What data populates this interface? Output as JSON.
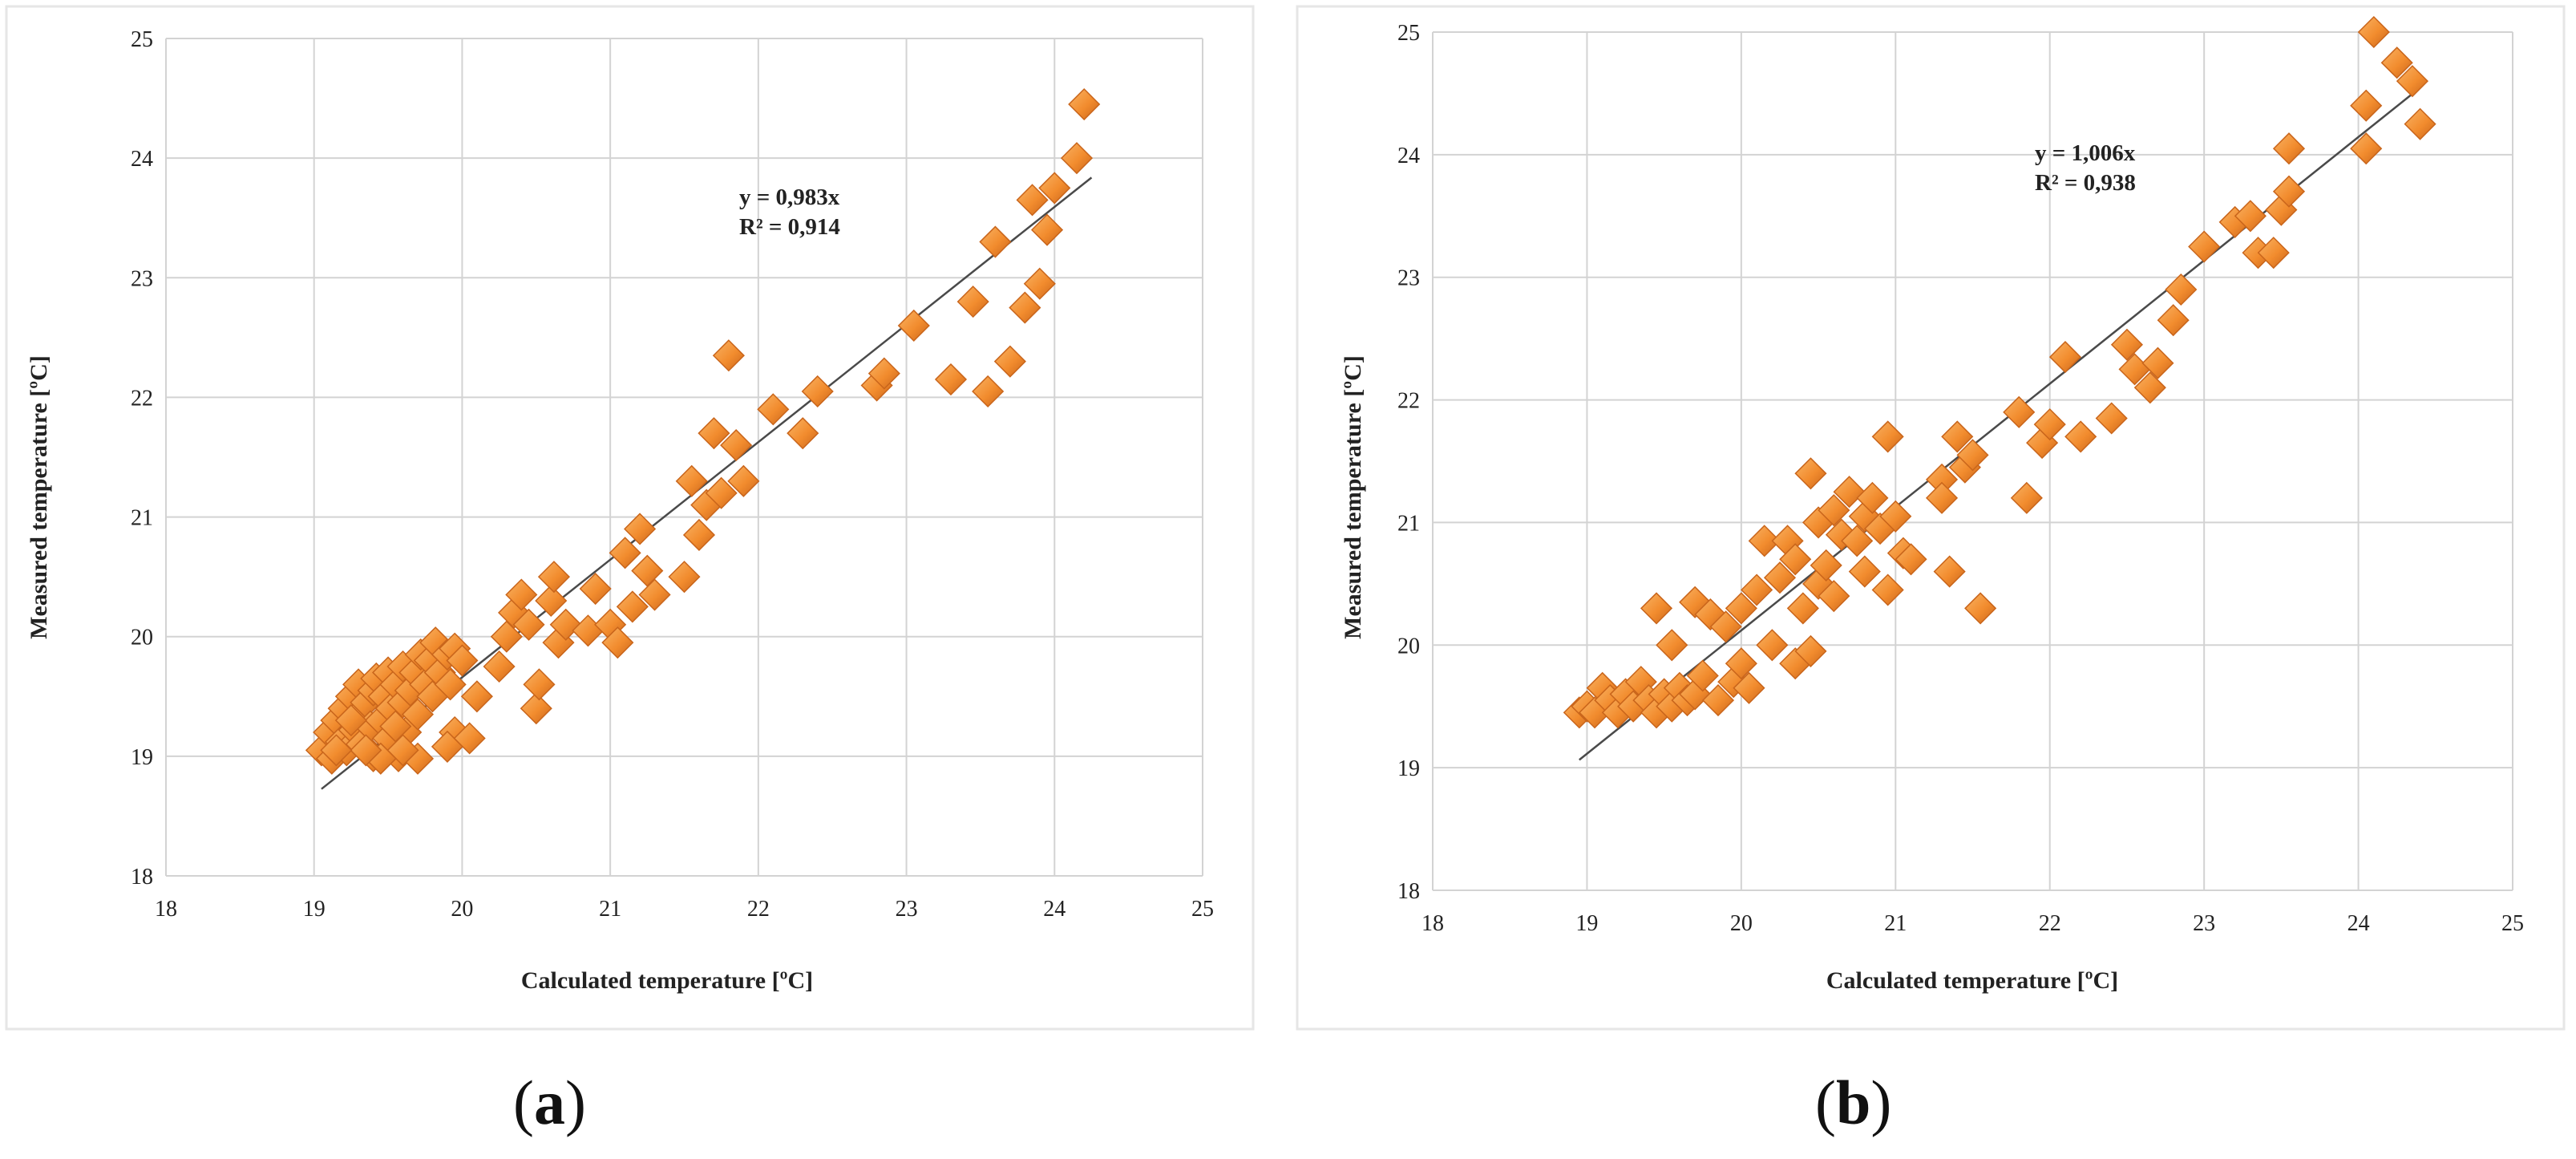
{
  "colors": {
    "marker_fill": "#f28c2e",
    "marker_highlight": "#f9b465",
    "marker_shadow": "#c9651b",
    "grid": "#d3d3d3",
    "trend": "#4a4a4a",
    "text": "#222222"
  },
  "chart_data": [
    {
      "id": "a",
      "type": "scatter",
      "panel_label": "a",
      "xlabel": "Calculated temperature [ºC]",
      "ylabel": "Measured temperature [ºC]",
      "xlim": [
        18,
        25
      ],
      "ylim": [
        18,
        25
      ],
      "xticks": [
        18,
        19,
        20,
        21,
        22,
        23,
        24,
        25
      ],
      "yticks": [
        18,
        19,
        20,
        21,
        22,
        23,
        24,
        25
      ],
      "grid": true,
      "annotation": {
        "equation": "y = 0,983x",
        "r2": "R² = 0,914"
      },
      "trendline": {
        "slope": 0.983,
        "x_range": [
          19.05,
          24.25
        ]
      },
      "points": [
        [
          19.05,
          19.05
        ],
        [
          19.1,
          19.2
        ],
        [
          19.12,
          18.98
        ],
        [
          19.15,
          19.3
        ],
        [
          19.18,
          19.12
        ],
        [
          19.2,
          19.4
        ],
        [
          19.22,
          19.05
        ],
        [
          19.25,
          19.5
        ],
        [
          19.27,
          19.22
        ],
        [
          19.3,
          19.6
        ],
        [
          19.3,
          19.35
        ],
        [
          19.32,
          19.1
        ],
        [
          19.35,
          19.45
        ],
        [
          19.38,
          19.25
        ],
        [
          19.4,
          19.55
        ],
        [
          19.4,
          19.0
        ],
        [
          19.42,
          19.65
        ],
        [
          19.45,
          19.3
        ],
        [
          19.47,
          19.5
        ],
        [
          19.5,
          19.7
        ],
        [
          19.5,
          19.15
        ],
        [
          19.52,
          19.4
        ],
        [
          19.55,
          19.6
        ],
        [
          19.57,
          19.0
        ],
        [
          19.6,
          19.75
        ],
        [
          19.6,
          19.45
        ],
        [
          19.62,
          19.2
        ],
        [
          19.65,
          19.55
        ],
        [
          19.68,
          19.7
        ],
        [
          19.7,
          19.35
        ],
        [
          19.72,
          19.85
        ],
        [
          19.75,
          19.6
        ],
        [
          19.78,
          19.8
        ],
        [
          19.8,
          19.5
        ],
        [
          19.82,
          19.95
        ],
        [
          19.85,
          19.7
        ],
        [
          19.9,
          19.85
        ],
        [
          19.92,
          19.6
        ],
        [
          19.95,
          19.9
        ],
        [
          20.0,
          19.8
        ],
        [
          19.95,
          19.2
        ],
        [
          19.9,
          19.08
        ],
        [
          20.05,
          19.15
        ],
        [
          19.7,
          18.98
        ],
        [
          19.6,
          19.05
        ],
        [
          19.45,
          18.98
        ],
        [
          19.55,
          19.25
        ],
        [
          19.35,
          19.05
        ],
        [
          19.25,
          19.3
        ],
        [
          19.15,
          19.05
        ],
        [
          20.1,
          19.5
        ],
        [
          20.25,
          19.75
        ],
        [
          20.3,
          20.0
        ],
        [
          20.35,
          20.2
        ],
        [
          20.4,
          20.35
        ],
        [
          20.45,
          20.1
        ],
        [
          20.5,
          19.4
        ],
        [
          20.52,
          19.6
        ],
        [
          20.6,
          20.3
        ],
        [
          20.62,
          20.5
        ],
        [
          20.65,
          19.95
        ],
        [
          20.7,
          20.1
        ],
        [
          20.85,
          20.05
        ],
        [
          20.9,
          20.4
        ],
        [
          21.0,
          20.1
        ],
        [
          21.05,
          19.95
        ],
        [
          21.1,
          20.7
        ],
        [
          21.15,
          20.25
        ],
        [
          21.2,
          20.9
        ],
        [
          21.25,
          20.55
        ],
        [
          21.3,
          20.35
        ],
        [
          21.5,
          20.5
        ],
        [
          21.55,
          21.3
        ],
        [
          21.6,
          20.85
        ],
        [
          21.65,
          21.1
        ],
        [
          21.7,
          21.7
        ],
        [
          21.75,
          21.2
        ],
        [
          21.8,
          22.35
        ],
        [
          21.85,
          21.6
        ],
        [
          21.9,
          21.3
        ],
        [
          22.1,
          21.9
        ],
        [
          22.3,
          21.7
        ],
        [
          22.4,
          22.05
        ],
        [
          22.8,
          22.1
        ],
        [
          22.85,
          22.2
        ],
        [
          23.05,
          22.6
        ],
        [
          23.3,
          22.15
        ],
        [
          23.45,
          22.8
        ],
        [
          23.55,
          22.05
        ],
        [
          23.6,
          23.3
        ],
        [
          23.7,
          22.3
        ],
        [
          23.8,
          22.75
        ],
        [
          23.85,
          23.65
        ],
        [
          23.9,
          22.95
        ],
        [
          23.95,
          23.4
        ],
        [
          24.0,
          23.75
        ],
        [
          24.15,
          24.0
        ],
        [
          24.2,
          24.45
        ]
      ]
    },
    {
      "id": "b",
      "type": "scatter",
      "panel_label": "b",
      "xlabel": "Calculated temperature [ºC]",
      "ylabel": "Measured temperature [ºC]",
      "xlim": [
        18,
        25
      ],
      "ylim": [
        18,
        25
      ],
      "xticks": [
        18,
        19,
        20,
        21,
        22,
        23,
        24,
        25
      ],
      "yticks": [
        18,
        19,
        20,
        21,
        22,
        23,
        24,
        25
      ],
      "grid": true,
      "annotation": {
        "equation": "y = 1,006x",
        "r2": "R² = 0,938"
      },
      "trendline": {
        "slope": 1.006,
        "x_range": [
          18.95,
          24.35
        ]
      },
      "points": [
        [
          18.95,
          19.45
        ],
        [
          19.0,
          19.5
        ],
        [
          19.05,
          19.45
        ],
        [
          19.1,
          19.65
        ],
        [
          19.15,
          19.55
        ],
        [
          19.2,
          19.45
        ],
        [
          19.25,
          19.6
        ],
        [
          19.3,
          19.5
        ],
        [
          19.35,
          19.7
        ],
        [
          19.4,
          19.55
        ],
        [
          19.45,
          20.3
        ],
        [
          19.45,
          19.45
        ],
        [
          19.5,
          19.6
        ],
        [
          19.55,
          20.0
        ],
        [
          19.55,
          19.5
        ],
        [
          19.6,
          19.65
        ],
        [
          19.65,
          19.55
        ],
        [
          19.7,
          20.35
        ],
        [
          19.7,
          19.6
        ],
        [
          19.75,
          19.75
        ],
        [
          19.8,
          20.25
        ],
        [
          19.85,
          19.55
        ],
        [
          19.9,
          20.15
        ],
        [
          19.95,
          19.7
        ],
        [
          20.0,
          20.3
        ],
        [
          20.0,
          19.85
        ],
        [
          20.05,
          19.65
        ],
        [
          20.1,
          20.45
        ],
        [
          20.15,
          20.85
        ],
        [
          20.2,
          20.0
        ],
        [
          20.25,
          20.55
        ],
        [
          20.3,
          20.85
        ],
        [
          20.35,
          20.7
        ],
        [
          20.35,
          19.85
        ],
        [
          20.4,
          20.3
        ],
        [
          20.45,
          19.95
        ],
        [
          20.45,
          21.4
        ],
        [
          20.5,
          20.5
        ],
        [
          20.5,
          21.0
        ],
        [
          20.55,
          20.65
        ],
        [
          20.6,
          21.1
        ],
        [
          20.6,
          20.4
        ],
        [
          20.65,
          20.9
        ],
        [
          20.7,
          21.25
        ],
        [
          20.75,
          20.85
        ],
        [
          20.8,
          21.05
        ],
        [
          20.8,
          20.6
        ],
        [
          20.85,
          21.2
        ],
        [
          20.9,
          20.95
        ],
        [
          20.95,
          20.45
        ],
        [
          20.95,
          21.7
        ],
        [
          21.0,
          21.05
        ],
        [
          21.05,
          20.75
        ],
        [
          21.1,
          20.7
        ],
        [
          21.3,
          21.35
        ],
        [
          21.3,
          21.2
        ],
        [
          21.35,
          20.6
        ],
        [
          21.4,
          21.7
        ],
        [
          21.45,
          21.45
        ],
        [
          21.5,
          21.55
        ],
        [
          21.55,
          20.3
        ],
        [
          21.8,
          21.9
        ],
        [
          21.85,
          21.2
        ],
        [
          21.95,
          21.65
        ],
        [
          22.0,
          21.8
        ],
        [
          22.1,
          22.35
        ],
        [
          22.2,
          21.7
        ],
        [
          22.4,
          21.85
        ],
        [
          22.5,
          22.45
        ],
        [
          22.55,
          22.25
        ],
        [
          22.65,
          22.1
        ],
        [
          22.7,
          22.3
        ],
        [
          22.8,
          22.65
        ],
        [
          22.85,
          22.9
        ],
        [
          23.0,
          23.25
        ],
        [
          23.2,
          23.45
        ],
        [
          23.3,
          23.5
        ],
        [
          23.35,
          23.2
        ],
        [
          23.45,
          23.2
        ],
        [
          23.5,
          23.55
        ],
        [
          23.55,
          23.7
        ],
        [
          23.55,
          24.05
        ],
        [
          24.05,
          24.4
        ],
        [
          24.05,
          24.05
        ],
        [
          24.1,
          25.0
        ],
        [
          24.25,
          24.75
        ],
        [
          24.35,
          24.6
        ],
        [
          24.4,
          24.25
        ]
      ]
    }
  ]
}
